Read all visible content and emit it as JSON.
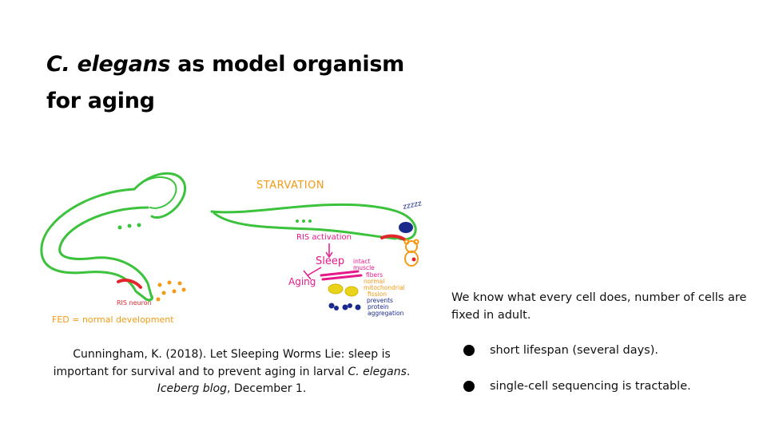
{
  "slide": {
    "title_italic": "C. elegans",
    "title_rest": " as model organism for aging"
  },
  "figure": {
    "label_starvation": "STARVATION",
    "label_zzz": "zzzzz",
    "label_ris_activation": "RIS activation",
    "label_sleep": "Sleep",
    "label_aging": "Aging",
    "label_intact_muscle_1": "intact",
    "label_intact_muscle_2": "muscle",
    "label_intact_muscle_3": "fibers",
    "label_normal_1": "normal",
    "label_normal_2": "mitochondrial",
    "label_normal_3": "fission",
    "label_prevents_1": "prevents",
    "label_prevents_2": "protein",
    "label_prevents_3": "aggregation",
    "label_ris_neuron": "RIS neuron",
    "label_fed": "FED = normal development",
    "colors": {
      "worm": "#3cc23c",
      "orange": "#f39a16",
      "magenta": "#e6198a",
      "navy": "#1a2a8c",
      "yellow": "#e8d21a",
      "red": "#e3262b"
    }
  },
  "citation": {
    "line1": "Cunningham, K. (2018). Let Sleeping Worms Lie: sleep is",
    "line2_pre": "important for survival and to prevent aging in larval ",
    "line2_italic": "C. elegans",
    "line2_post": ".",
    "line3_italic": "Iceberg blog",
    "line3_post": ", December 1."
  },
  "facts": {
    "intro": "We know what every cell does, number of cells are fixed in adult.",
    "bullets": [
      "short lifespan (several days).",
      "single-cell sequencing is tractable."
    ]
  }
}
